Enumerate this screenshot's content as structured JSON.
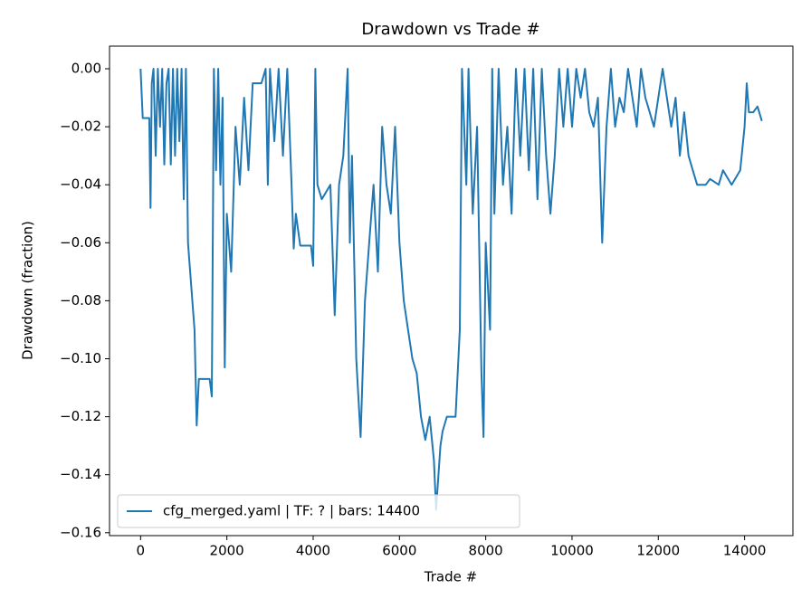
{
  "chart_data": {
    "type": "line",
    "title": "Drawdown vs Trade #",
    "x_label": "Trade #",
    "y_label": "Drawdown (fraction)",
    "xlim": [
      -720,
      15120
    ],
    "ylim": [
      -0.161,
      0.0078
    ],
    "xticks": [
      0,
      2000,
      4000,
      6000,
      8000,
      10000,
      12000,
      14000
    ],
    "yticks": [
      {
        "value": 0,
        "label": "0.00"
      },
      {
        "value": -0.02,
        "label": "−0.02"
      },
      {
        "value": -0.04,
        "label": "−0.04"
      },
      {
        "value": -0.06,
        "label": "−0.06"
      },
      {
        "value": -0.08,
        "label": "−0.08"
      },
      {
        "value": -0.1,
        "label": "−0.10"
      },
      {
        "value": -0.12,
        "label": "−0.12"
      },
      {
        "value": -0.14,
        "label": "−0.14"
      },
      {
        "value": -0.16,
        "label": "−0.16"
      }
    ],
    "legend": "lower left",
    "series": [
      {
        "name": "cfg_merged.yaml | TF: ? | bars: 14400",
        "color": "#1f77b4",
        "x": [
          0,
          50,
          200,
          230,
          260,
          300,
          350,
          400,
          450,
          500,
          550,
          600,
          650,
          700,
          750,
          800,
          850,
          900,
          950,
          1000,
          1050,
          1100,
          1150,
          1200,
          1250,
          1300,
          1350,
          1400,
          1600,
          1650,
          1700,
          1750,
          1800,
          1850,
          1900,
          1950,
          2000,
          2100,
          2200,
          2300,
          2400,
          2500,
          2600,
          2800,
          2900,
          2950,
          3000,
          3100,
          3200,
          3300,
          3400,
          3500,
          3550,
          3600,
          3700,
          3950,
          4000,
          4050,
          4100,
          4200,
          4400,
          4500,
          4600,
          4700,
          4800,
          4850,
          4900,
          5000,
          5100,
          5200,
          5300,
          5400,
          5500,
          5600,
          5700,
          5800,
          5900,
          6000,
          6100,
          6200,
          6300,
          6400,
          6500,
          6600,
          6700,
          6800,
          6850,
          6950,
          7000,
          7100,
          7300,
          7400,
          7450,
          7550,
          7600,
          7700,
          7800,
          7900,
          7950,
          8000,
          8100,
          8150,
          8200,
          8300,
          8400,
          8500,
          8600,
          8700,
          8800,
          8900,
          9000,
          9100,
          9200,
          9300,
          9400,
          9500,
          9600,
          9700,
          9800,
          9900,
          10000,
          10100,
          10200,
          10300,
          10400,
          10500,
          10600,
          10700,
          10800,
          10900,
          11000,
          11100,
          11200,
          11300,
          11400,
          11500,
          11600,
          11700,
          11800,
          11900,
          12000,
          12100,
          12200,
          12300,
          12400,
          12500,
          12600,
          12700,
          12800,
          12900,
          13100,
          13200,
          13400,
          13500,
          13700,
          13900,
          14000,
          14050,
          14100,
          14200,
          14300,
          14400
        ],
        "values": [
          0,
          -0.017,
          -0.017,
          -0.048,
          -0.005,
          0,
          -0.03,
          0,
          -0.02,
          0,
          -0.033,
          -0.005,
          0,
          -0.033,
          0,
          -0.03,
          0,
          -0.025,
          0,
          -0.045,
          0,
          -0.06,
          -0.07,
          -0.08,
          -0.09,
          -0.123,
          -0.107,
          -0.107,
          -0.107,
          -0.113,
          0,
          -0.035,
          0,
          -0.04,
          -0.01,
          -0.103,
          -0.05,
          -0.07,
          -0.02,
          -0.04,
          -0.01,
          -0.035,
          -0.005,
          -0.005,
          0,
          -0.04,
          0,
          -0.025,
          0,
          -0.03,
          0,
          -0.04,
          -0.062,
          -0.05,
          -0.061,
          -0.061,
          -0.068,
          0,
          -0.04,
          -0.045,
          -0.04,
          -0.085,
          -0.04,
          -0.03,
          0,
          -0.06,
          -0.03,
          -0.1,
          -0.127,
          -0.08,
          -0.06,
          -0.04,
          -0.07,
          -0.02,
          -0.04,
          -0.05,
          -0.02,
          -0.06,
          -0.08,
          -0.09,
          -0.1,
          -0.105,
          -0.12,
          -0.128,
          -0.12,
          -0.135,
          -0.152,
          -0.13,
          -0.125,
          -0.12,
          -0.12,
          -0.09,
          0,
          -0.04,
          0,
          -0.05,
          -0.02,
          -0.105,
          -0.127,
          -0.06,
          -0.09,
          0,
          -0.05,
          0,
          -0.04,
          -0.02,
          -0.05,
          0,
          -0.03,
          0,
          -0.035,
          0,
          -0.045,
          0,
          -0.03,
          -0.05,
          -0.03,
          0,
          -0.02,
          0,
          -0.02,
          0,
          -0.01,
          0,
          -0.015,
          -0.02,
          -0.01,
          -0.06,
          -0.02,
          0,
          -0.02,
          -0.01,
          -0.015,
          0,
          -0.01,
          -0.02,
          0,
          -0.01,
          -0.015,
          -0.02,
          -0.01,
          0,
          -0.01,
          -0.02,
          -0.01,
          -0.03,
          -0.015,
          -0.03,
          -0.035,
          -0.04,
          -0.04,
          -0.038,
          -0.04,
          -0.035,
          -0.04,
          -0.035,
          -0.02,
          -0.005,
          -0.015,
          -0.015,
          -0.013,
          -0.018
        ]
      }
    ]
  }
}
